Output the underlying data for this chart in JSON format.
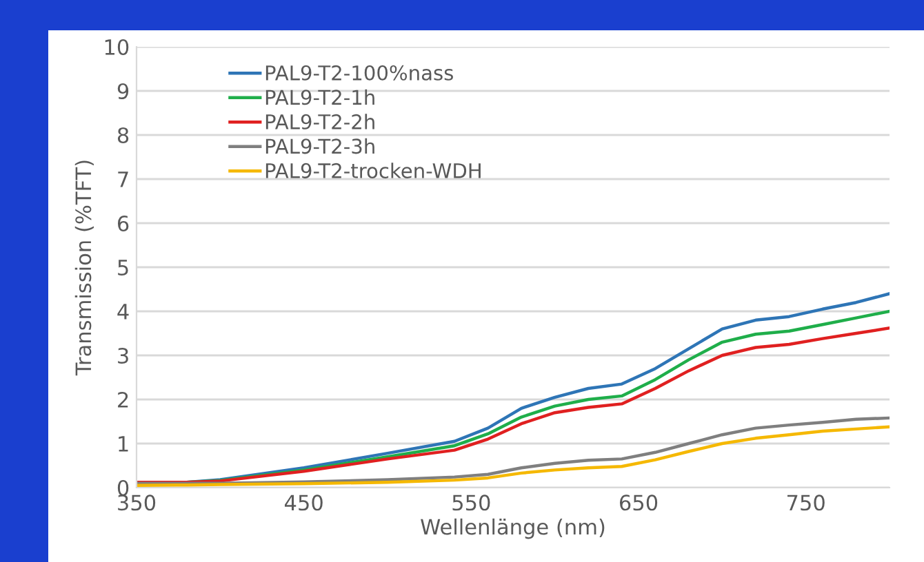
{
  "chart_data": {
    "type": "line",
    "xlabel": "Wellenlänge (nm)",
    "ylabel": "Transmission (%TFT)",
    "x": [
      350,
      380,
      400,
      450,
      500,
      540,
      560,
      580,
      600,
      620,
      640,
      660,
      680,
      700,
      720,
      740,
      760,
      780,
      800
    ],
    "series": [
      {
        "name": "PAL9-T2-100%nass",
        "color": "#2e75b6",
        "values": [
          0.12,
          0.12,
          0.18,
          0.45,
          0.78,
          1.05,
          1.35,
          1.8,
          2.05,
          2.25,
          2.35,
          2.7,
          3.15,
          3.6,
          3.8,
          3.88,
          4.05,
          4.2,
          4.4
        ]
      },
      {
        "name": "PAL9-T2-1h",
        "color": "#1fae4a",
        "values": [
          0.12,
          0.12,
          0.16,
          0.4,
          0.7,
          0.95,
          1.22,
          1.6,
          1.85,
          2.0,
          2.08,
          2.45,
          2.9,
          3.3,
          3.48,
          3.55,
          3.7,
          3.85,
          4.0
        ]
      },
      {
        "name": "PAL9-T2-2h",
        "color": "#e02020",
        "values": [
          0.12,
          0.12,
          0.15,
          0.37,
          0.65,
          0.85,
          1.1,
          1.45,
          1.7,
          1.82,
          1.9,
          2.25,
          2.65,
          3.0,
          3.18,
          3.25,
          3.38,
          3.5,
          3.62
        ]
      },
      {
        "name": "PAL9-T2-3h",
        "color": "#7f7f7f",
        "values": [
          0.1,
          0.1,
          0.1,
          0.13,
          0.18,
          0.24,
          0.3,
          0.45,
          0.55,
          0.62,
          0.65,
          0.8,
          1.0,
          1.2,
          1.35,
          1.42,
          1.48,
          1.55,
          1.58
        ]
      },
      {
        "name": "PAL9-T2-trocken-WDH",
        "color": "#f5b800",
        "values": [
          0.05,
          0.06,
          0.07,
          0.09,
          0.12,
          0.17,
          0.22,
          0.33,
          0.4,
          0.45,
          0.48,
          0.63,
          0.82,
          1.0,
          1.12,
          1.2,
          1.28,
          1.33,
          1.38
        ]
      }
    ],
    "xlim": [
      350,
      800
    ],
    "xticks": [
      350,
      450,
      550,
      650,
      750
    ],
    "ylim": [
      0,
      10
    ],
    "yticks": [
      0,
      1,
      2,
      3,
      4,
      5,
      6,
      7,
      8,
      9,
      10
    ],
    "grid": "y",
    "legend": "top left",
    "marker": "none",
    "line_style": "solid"
  }
}
